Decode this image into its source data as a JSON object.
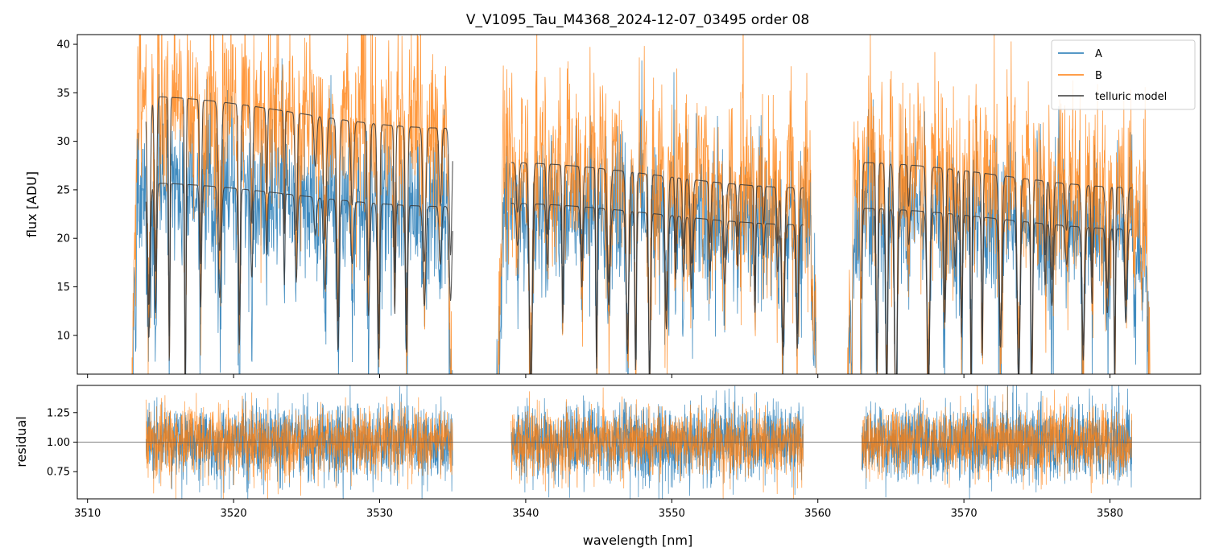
{
  "chart_data": [
    {
      "type": "line",
      "title": "V_V1095_Tau_M4368_2024-12-07_03495  order 08",
      "ylabel": "flux [ADU]",
      "xlabel": "",
      "xlim": [
        3509.3,
        3586.2
      ],
      "ylim": [
        6,
        41
      ],
      "yticks": [
        10,
        15,
        20,
        25,
        30,
        35,
        40
      ],
      "xticks": [
        3510,
        3520,
        3530,
        3540,
        3550,
        3560,
        3570,
        3580
      ],
      "legend": {
        "placement": "top-right",
        "entries": [
          "A",
          "B",
          "telluric model"
        ]
      },
      "colors": {
        "A": "#1f77b4",
        "B": "#ff7f0e",
        "model": "#3a3a3a"
      },
      "segments": [
        {
          "x_range": [
            3513.0,
            3535.0
          ],
          "A_level": 24.5,
          "B_level": 33.0
        },
        {
          "x_range": [
            3538.0,
            3560.0
          ],
          "A_level": 22.5,
          "B_level": 26.5
        },
        {
          "x_range": [
            3562.0,
            3582.8
          ],
          "A_level": 22.0,
          "B_level": 26.5
        }
      ],
      "series": [
        {
          "name": "A",
          "description": "noisy observed flux, fiber A",
          "noise_sigma": 4.0
        },
        {
          "name": "B",
          "description": "noisy observed flux, fiber B",
          "noise_sigma": 5.0
        },
        {
          "name": "telluric model",
          "x_ranges": [
            [
              3514.0,
              3535.0
            ],
            [
              3539.0,
              3559.0
            ],
            [
              3563.0,
              3581.5
            ]
          ]
        }
      ]
    },
    {
      "type": "line",
      "title": "",
      "ylabel": "residual",
      "xlabel": "wavelength [nm]",
      "xlim": [
        3509.3,
        3586.2
      ],
      "ylim": [
        0.52,
        1.48
      ],
      "yticks": [
        0.75,
        1.0,
        1.25
      ],
      "ytick_labels": [
        "0.75",
        "1.00",
        "1.25"
      ],
      "xticks": [
        3510,
        3520,
        3530,
        3540,
        3550,
        3560,
        3570,
        3580
      ],
      "reference_line": 1.0,
      "segments": [
        [
          3514.0,
          3535.0
        ],
        [
          3539.0,
          3559.0
        ],
        [
          3563.0,
          3581.5
        ]
      ],
      "series": [
        {
          "name": "A",
          "center": 1.0,
          "noise_sigma": 0.16
        },
        {
          "name": "B",
          "center": 1.0,
          "noise_sigma": 0.14
        }
      ]
    }
  ]
}
